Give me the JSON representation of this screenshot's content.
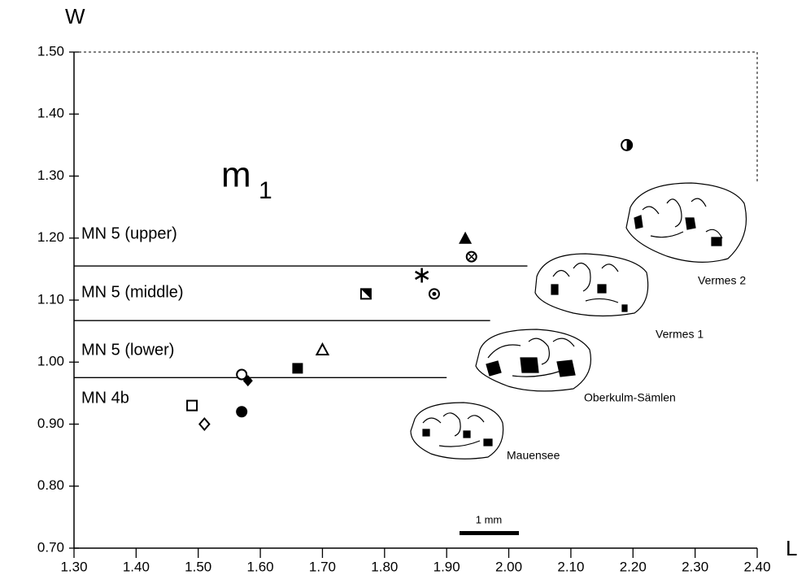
{
  "chart_data": {
    "type": "scatter",
    "x_label": "L",
    "y_label": "W",
    "title_main": "m",
    "title_sub": "1",
    "xlim": [
      1.3,
      2.4
    ],
    "xticks": [
      {
        "value": 1.3,
        "label": "1.30"
      },
      {
        "value": 1.4,
        "label": "1.40"
      },
      {
        "value": 1.5,
        "label": "1.50"
      },
      {
        "value": 1.6,
        "label": "1.60"
      },
      {
        "value": 1.7,
        "label": "1.70"
      },
      {
        "value": 1.8,
        "label": "1.80"
      },
      {
        "value": 1.9,
        "label": "1.90"
      },
      {
        "value": 2.0,
        "label": "2.00"
      },
      {
        "value": 2.1,
        "label": "2.10"
      },
      {
        "value": 2.2,
        "label": "2.20"
      },
      {
        "value": 2.3,
        "label": "2.30"
      },
      {
        "value": 2.4,
        "label": "2.40"
      }
    ],
    "ylim": [
      0.7,
      1.5
    ],
    "yticks": [
      {
        "value": 0.7,
        "label": "0.70"
      },
      {
        "value": 0.8,
        "label": "0.80"
      },
      {
        "value": 0.9,
        "label": "0.90"
      },
      {
        "value": 1.0,
        "label": "1.00"
      },
      {
        "value": 1.1,
        "label": "1.10"
      },
      {
        "value": 1.2,
        "label": "1.20"
      },
      {
        "value": 1.3,
        "label": "1.30"
      },
      {
        "value": 1.4,
        "label": "1.40"
      },
      {
        "value": 1.5,
        "label": "1.50"
      }
    ],
    "points": [
      {
        "x": 1.57,
        "y": 0.98,
        "marker": "open-circle"
      },
      {
        "x": 1.58,
        "y": 0.97,
        "marker": "filled-diamond"
      },
      {
        "x": 1.49,
        "y": 0.93,
        "marker": "open-square"
      },
      {
        "x": 1.57,
        "y": 0.92,
        "marker": "filled-circle"
      },
      {
        "x": 1.51,
        "y": 0.9,
        "marker": "open-diamond"
      },
      {
        "x": 1.66,
        "y": 0.99,
        "marker": "filled-square"
      },
      {
        "x": 1.7,
        "y": 1.02,
        "marker": "open-triangle"
      },
      {
        "x": 1.77,
        "y": 1.11,
        "marker": "half-square"
      },
      {
        "x": 1.86,
        "y": 1.14,
        "marker": "asterisk"
      },
      {
        "x": 1.88,
        "y": 1.11,
        "marker": "dotted-circle"
      },
      {
        "x": 1.93,
        "y": 1.2,
        "marker": "filled-triangle"
      },
      {
        "x": 1.94,
        "y": 1.17,
        "marker": "crossed-circle"
      },
      {
        "x": 2.19,
        "y": 1.35,
        "marker": "half-circle"
      }
    ],
    "boundaries": [
      {
        "y": 1.155,
        "x_end": 2.03
      },
      {
        "y": 1.067,
        "x_end": 1.97
      },
      {
        "y": 0.975,
        "x_end": 1.9
      }
    ],
    "zone_labels": [
      "MN 5 (upper)",
      "MN 5 (middle)",
      "MN 5 (lower)",
      "MN 4b"
    ],
    "specimen_labels": [
      "Vermes 2",
      "Vermes 1",
      "Oberkulm-Sämlen",
      "Mauensee"
    ],
    "scale_label": "1 mm"
  }
}
